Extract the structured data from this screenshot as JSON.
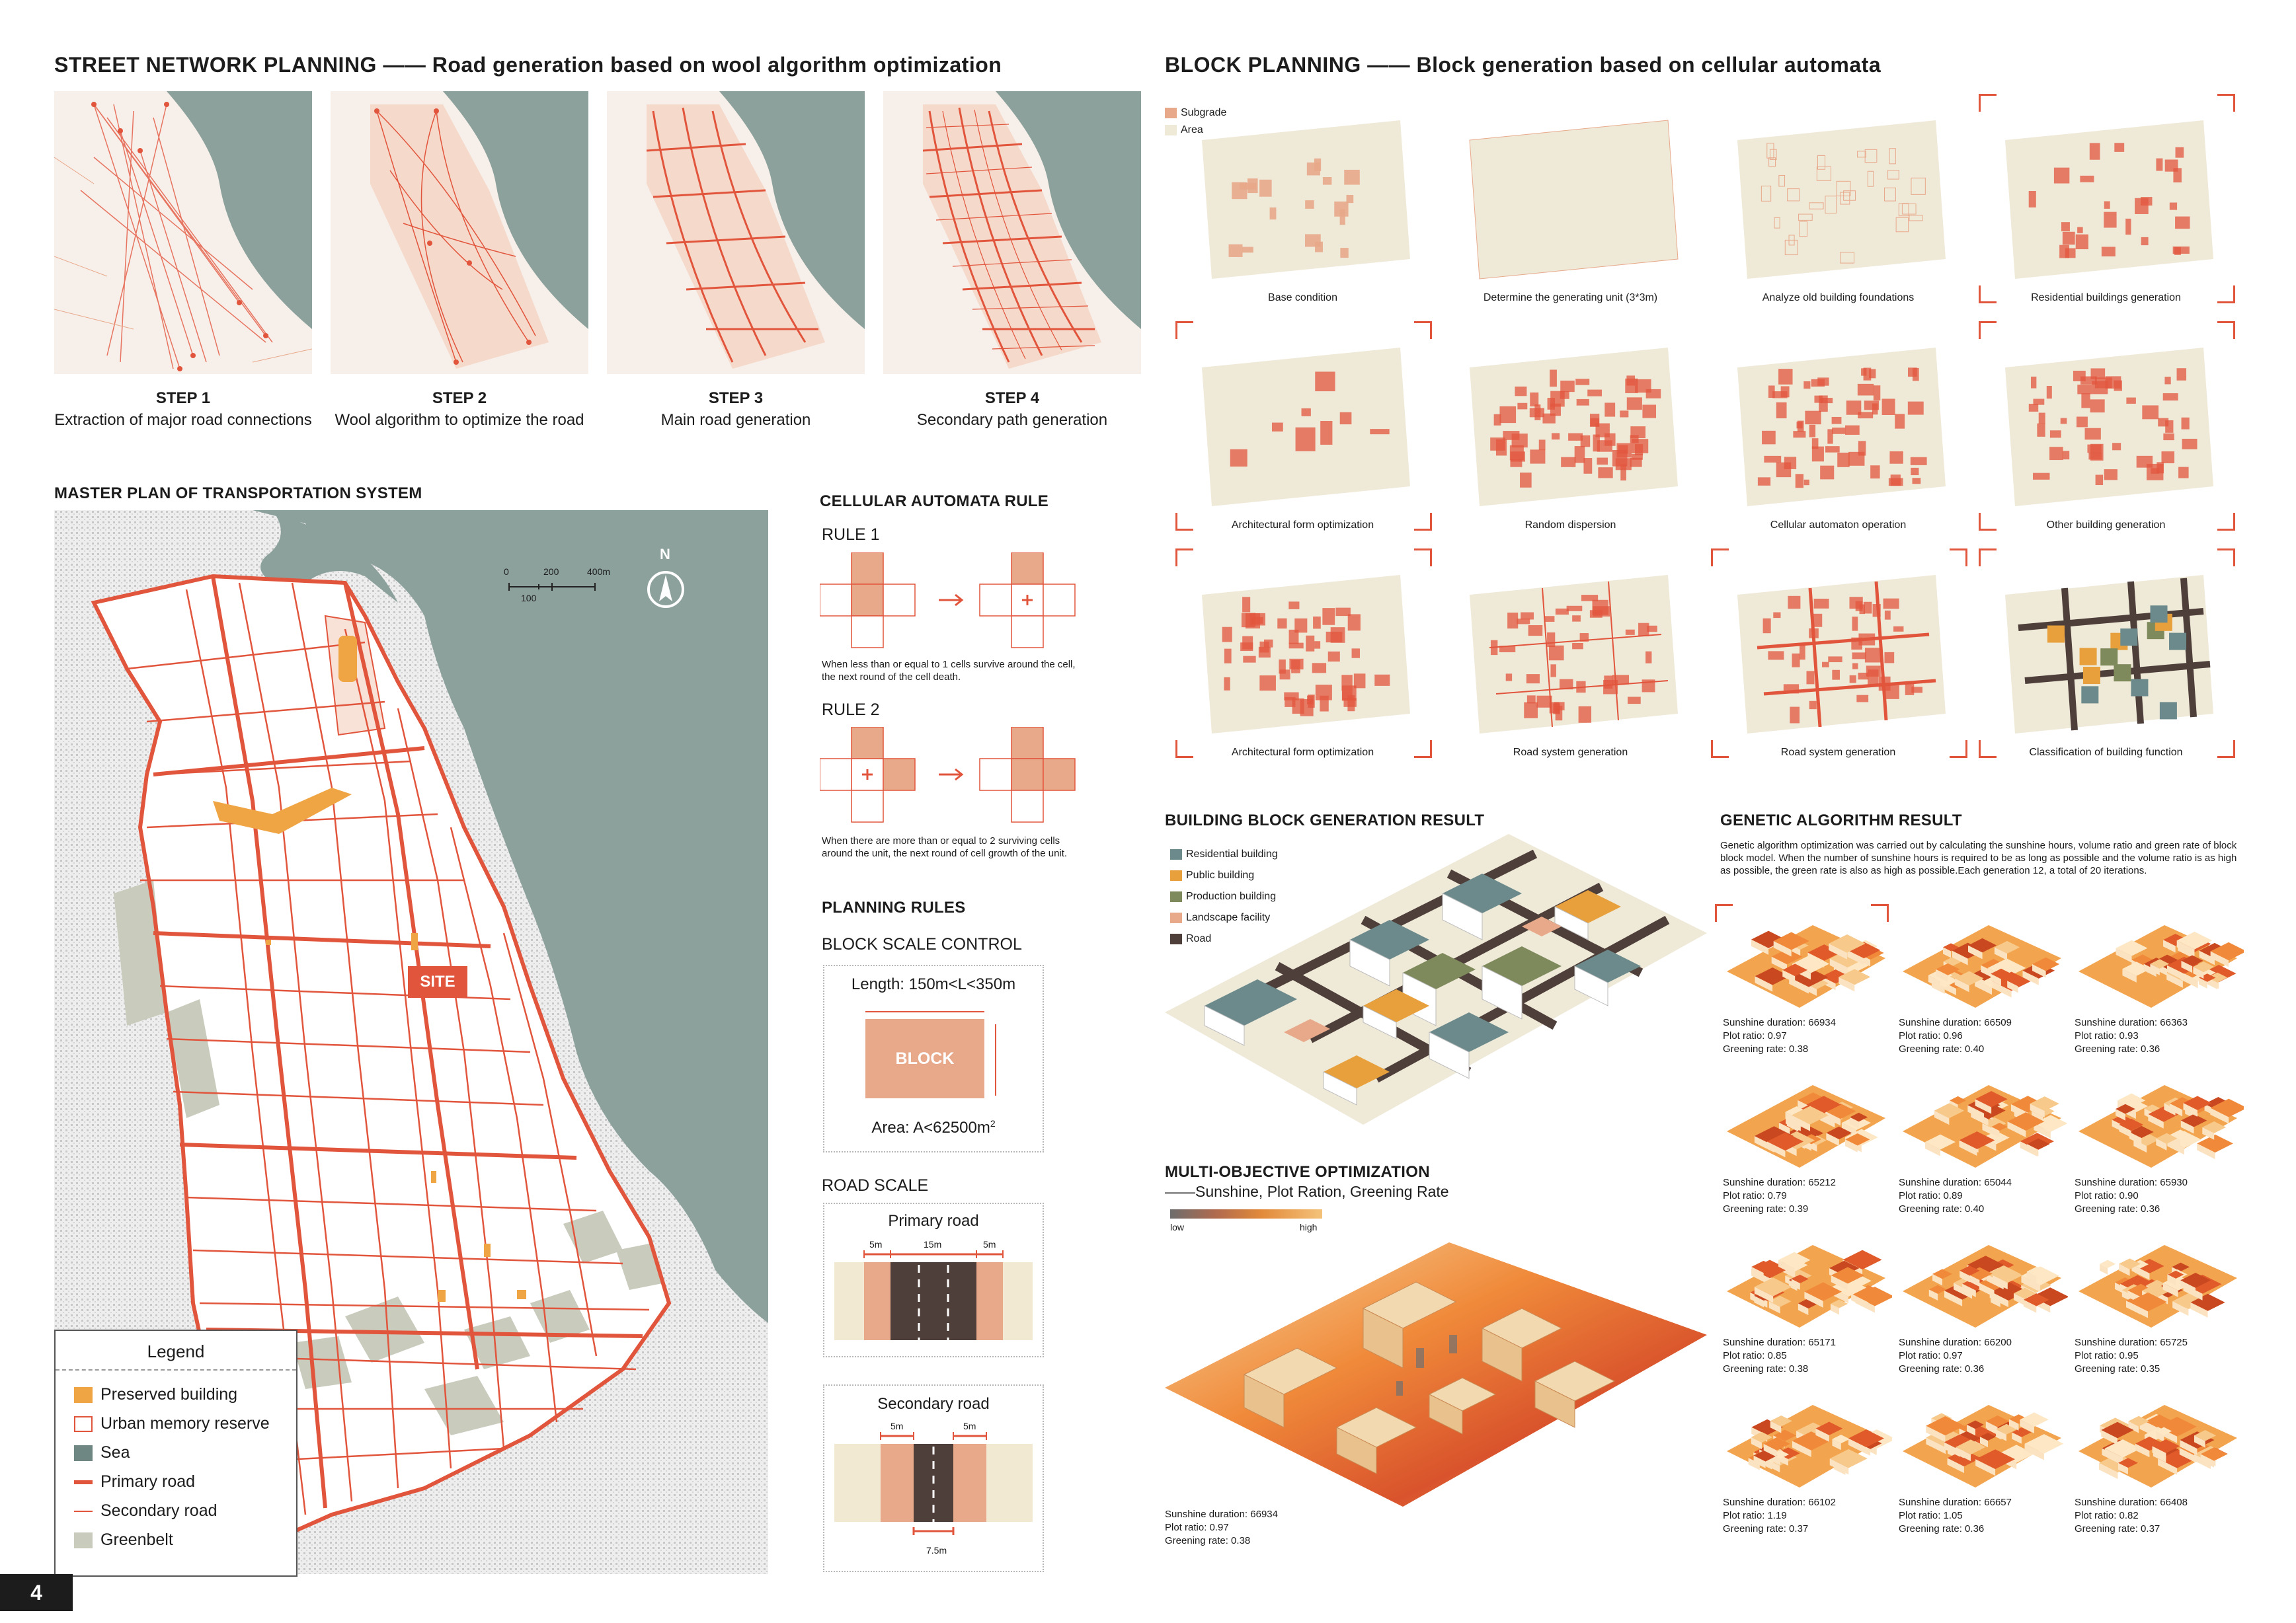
{
  "street": {
    "title": "STREET NETWORK PLANNING —— Road generation based on wool algorithm optimization",
    "steps": [
      {
        "label": "STEP 1",
        "desc": "Extraction of major road connections"
      },
      {
        "label": "STEP 2",
        "desc": "Wool algorithm to optimize the road"
      },
      {
        "label": "STEP 3",
        "desc": "Main road generation"
      },
      {
        "label": "STEP 4",
        "desc": "Secondary path generation"
      }
    ]
  },
  "master": {
    "title": "MASTER PLAN OF TRANSPORTATION SYSTEM",
    "site_label": "SITE",
    "north": "N",
    "scale": {
      "t0": "0",
      "t1": "200",
      "t2": "400m",
      "t3": "100"
    },
    "legend": {
      "title": "Legend",
      "items": [
        {
          "label": "Preserved building",
          "color": "#f0a545"
        },
        {
          "label": "Urban memory reserve",
          "color": "#e2553d"
        },
        {
          "label": "Sea",
          "color": "#8ca19c"
        },
        {
          "label": "Primary road",
          "color": "#e2553d"
        },
        {
          "label": "Secondary road",
          "color": "#e2553d"
        },
        {
          "label": "Greenbelt",
          "color": "#c9cbbd"
        }
      ]
    }
  },
  "ca": {
    "title": "CELLULAR AUTOMATA RULE",
    "rule1": "RULE 1",
    "rule1_text": "When less than or equal to 1 cells survive around the cell, the next round of the cell death.",
    "rule2": "RULE 2",
    "rule2_text": "When there are more than or equal to 2 surviving cells around the unit, the next round of cell growth of the unit."
  },
  "planning": {
    "title": "PLANNING RULES",
    "block_scale": "BLOCK SCALE CONTROL",
    "length": "Length: 150m<L<350m",
    "block": "BLOCK",
    "area": "Area: A<62500m",
    "area_sup": "2",
    "road_scale": "ROAD SCALE",
    "primary": "Primary road",
    "primary_dims": [
      "5m",
      "15m",
      "5m"
    ],
    "secondary": "Secondary road",
    "secondary_dims": [
      "5m",
      "5m",
      "7.5m"
    ]
  },
  "block": {
    "title": "BLOCK PLANNING —— Block generation based on cellular automata",
    "legend": [
      {
        "label": "Subgrade",
        "color": "#e8a98b"
      },
      {
        "label": "Area",
        "color": "#efe9d8"
      }
    ],
    "captions": [
      "Base condition",
      "Determine the generating unit (3*3m)",
      "Analyze old building foundations",
      "Residential buildings generation",
      "Architectural form optimization",
      "Random dispersion",
      "Cellular automaton operation",
      "Other building generation",
      "Architectural form optimization",
      "Road system generation",
      "Road system generation",
      "Classification of building function"
    ]
  },
  "bbg": {
    "title": "BUILDING BLOCK GENERATION RESULT",
    "legend": [
      {
        "label": "Residential building",
        "color": "#6c8a8c"
      },
      {
        "label": "Public building",
        "color": "#e8a03c"
      },
      {
        "label": "Production building",
        "color": "#7f8a5c"
      },
      {
        "label": "Landscape facility",
        "color": "#e8a98b"
      },
      {
        "label": "Road",
        "color": "#4e3f3a"
      }
    ]
  },
  "moo": {
    "title": "MULTI-OBJECTIVE OPTIMIZATION",
    "subtitle": "——Sunshine, Plot Ration, Greening Rate",
    "low": "low",
    "high": "high",
    "stats": [
      "Sunshine duration: 66934",
      "Plot ratio: 0.97",
      "Greening rate: 0.38"
    ]
  },
  "ga": {
    "title": "GENETIC ALGORITHM RESULT",
    "description": "Genetic algorithm optimization was carried out by calculating the sunshine hours, volume ratio and green rate of block block model. When the number of sunshine hours is required to be as long as possible and the volume ratio is as high as possible, the green rate is also as high as possible.Each generation 12, a total of 20 iterations.",
    "results": [
      {
        "s": "Sunshine duration: 66934",
        "p": "Plot ratio: 0.97",
        "g": "Greening rate: 0.38"
      },
      {
        "s": "Sunshine duration: 66509",
        "p": "Plot ratio: 0.96",
        "g": "Greening rate: 0.40"
      },
      {
        "s": "Sunshine duration: 66363",
        "p": "Plot ratio: 0.93",
        "g": "Greening rate: 0.36"
      },
      {
        "s": "Sunshine duration: 65212",
        "p": "Plot ratio: 0.79",
        "g": "Greening rate: 0.39"
      },
      {
        "s": "Sunshine duration: 65044",
        "p": "Plot ratio: 0.89",
        "g": "Greening rate: 0.40"
      },
      {
        "s": "Sunshine duration: 65930",
        "p": "Plot ratio: 0.90",
        "g": "Greening rate: 0.36"
      },
      {
        "s": "Sunshine duration: 65171",
        "p": "Plot ratio: 0.85",
        "g": "Greening rate: 0.38"
      },
      {
        "s": "Sunshine duration: 66200",
        "p": "Plot ratio: 0.97",
        "g": "Greening rate: 0.36"
      },
      {
        "s": "Sunshine duration: 65725",
        "p": "Plot ratio: 0.95",
        "g": "Greening rate: 0.35"
      },
      {
        "s": "Sunshine duration: 66102",
        "p": "Plot ratio: 1.19",
        "g": "Greening rate: 0.37"
      },
      {
        "s": "Sunshine duration: 66657",
        "p": "Plot ratio: 1.05",
        "g": "Greening rate: 0.36"
      },
      {
        "s": "Sunshine duration: 66408",
        "p": "Plot ratio: 0.82",
        "g": "Greening rate: 0.37"
      }
    ]
  },
  "page_number": "4",
  "colors": {
    "accent": "#e2553d",
    "sea": "#8ca19c",
    "sand": "#efe9d8",
    "orange": "#f0a545"
  }
}
